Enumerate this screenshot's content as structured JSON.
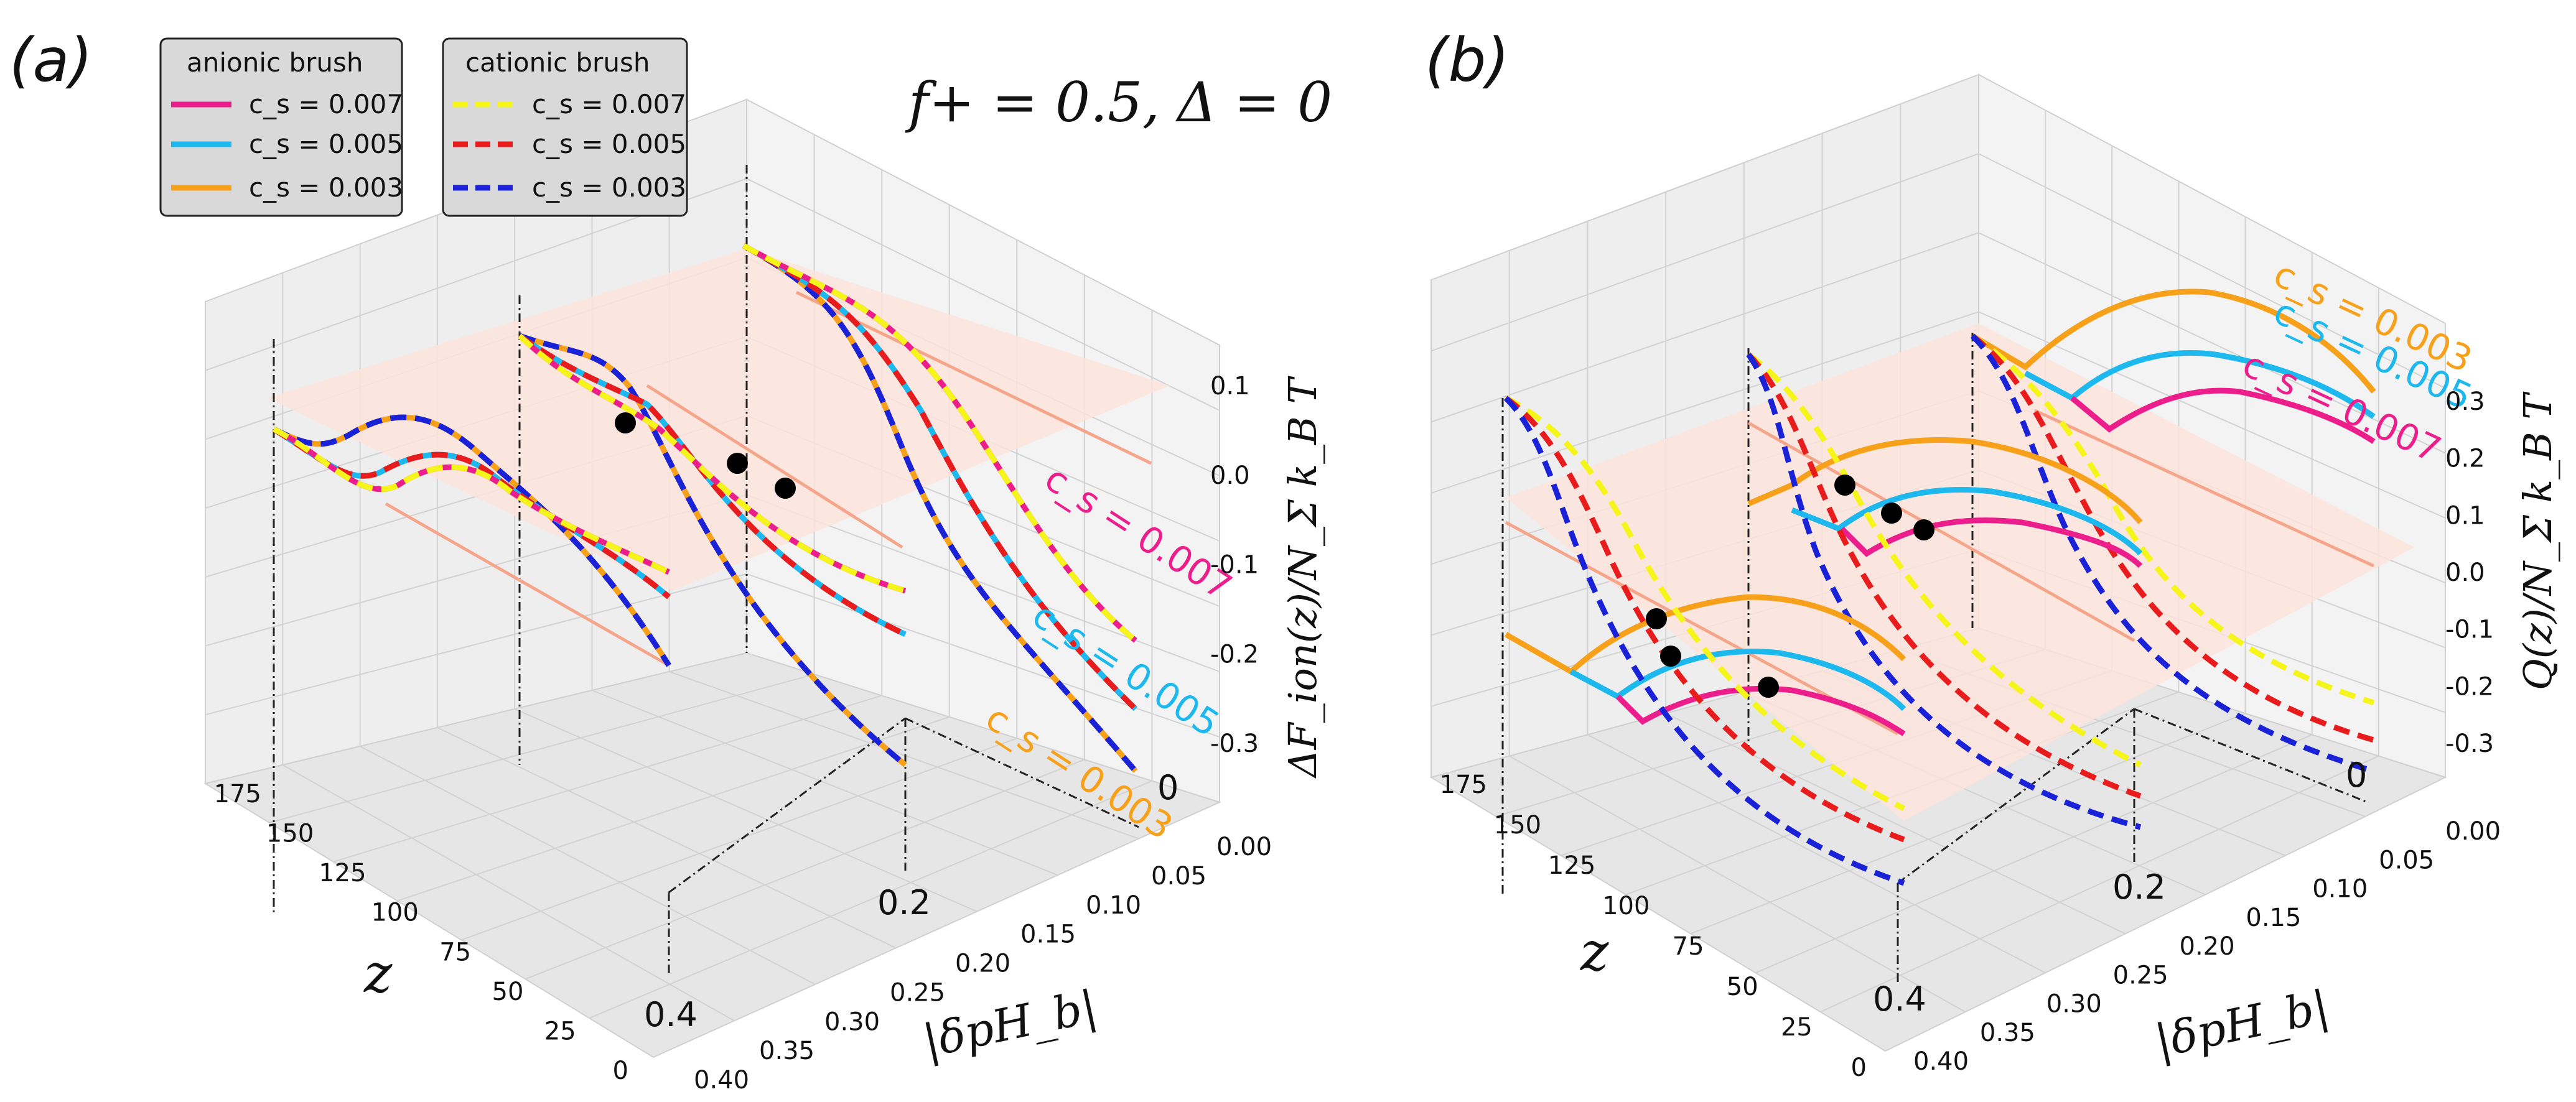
{
  "chart_data": [
    {
      "type": "line",
      "panel_label": "(a)",
      "title": "f+ = 0.5, Δ = 0",
      "xlabel": "z",
      "ylabel": "|δpH_b|",
      "zlabel": "ΔF_ion(z)/N_Σ k_B T",
      "xlim": [
        0,
        180
      ],
      "ylim": [
        0,
        0.4
      ],
      "zlim": [
        -0.35,
        0.15
      ],
      "x_ticks": [
        "0",
        "25",
        "50",
        "75",
        "100",
        "125",
        "150",
        "175"
      ],
      "y_ticks": [
        "0.00",
        "0.05",
        "0.10",
        "0.15",
        "0.20",
        "0.25",
        "0.30",
        "0.35",
        "0.40"
      ],
      "z_ticks": [
        "-0.3",
        "-0.2",
        "-0.1",
        "0.0",
        "0.1"
      ],
      "slice_labels": [
        "0",
        "0.2",
        "0.4"
      ],
      "curve_labels": [
        "c_s = 0.007",
        "c_s = 0.005",
        "c_s = 0.003"
      ],
      "grid": true,
      "legend": [
        {
          "title": "anionic brush",
          "entries": [
            {
              "label": "c_s = 0.007",
              "color": "#ec1e8c",
              "style": "solid"
            },
            {
              "label": "c_s = 0.005",
              "color": "#1cb8ee",
              "style": "solid"
            },
            {
              "label": "c_s = 0.003",
              "color": "#f7a01a",
              "style": "solid"
            }
          ]
        },
        {
          "title": "cationic brush",
          "entries": [
            {
              "label": "c_s = 0.007",
              "color": "#f5f51a",
              "style": "dashed"
            },
            {
              "label": "c_s = 0.005",
              "color": "#e81c1c",
              "style": "dashed"
            },
            {
              "label": "c_s = 0.003",
              "color": "#1a22d8",
              "style": "dashed"
            }
          ]
        }
      ],
      "slices": [
        0.0,
        0.2,
        0.4
      ],
      "series_z_at_175": [
        0.05,
        0.05,
        0.05
      ],
      "series_z_at_0": [
        -0.1,
        -0.2,
        -0.3
      ]
    },
    {
      "type": "line",
      "panel_label": "(b)",
      "xlabel": "z",
      "ylabel": "|δpH_b|",
      "zlabel": "Q(z)/N_Σ k_B T",
      "xlim": [
        0,
        180
      ],
      "ylim": [
        0,
        0.4
      ],
      "zlim": [
        -0.35,
        0.35
      ],
      "x_ticks": [
        "0",
        "25",
        "50",
        "75",
        "100",
        "125",
        "150",
        "175"
      ],
      "y_ticks": [
        "0.00",
        "0.05",
        "0.10",
        "0.15",
        "0.20",
        "0.25",
        "0.30",
        "0.35",
        "0.40"
      ],
      "z_ticks": [
        "-0.3",
        "-0.2",
        "-0.1",
        "0.0",
        "0.1",
        "0.2",
        "0.3"
      ],
      "slice_labels": [
        "0",
        "0.2",
        "0.4"
      ],
      "curve_labels": [
        "c_s = 0.003",
        "c_s = 0.005",
        "c_s = 0.007"
      ],
      "grid": true,
      "slices": [
        0.0,
        0.2,
        0.4
      ]
    }
  ],
  "colors": {
    "pink": "#ec1e8c",
    "cyan": "#1cb8ee",
    "orange": "#f7a01a",
    "yellow": "#f5f51a",
    "red": "#e81c1c",
    "blue": "#1a22d8",
    "salmon": "#f5a58a",
    "plane": "#fde3dc"
  }
}
